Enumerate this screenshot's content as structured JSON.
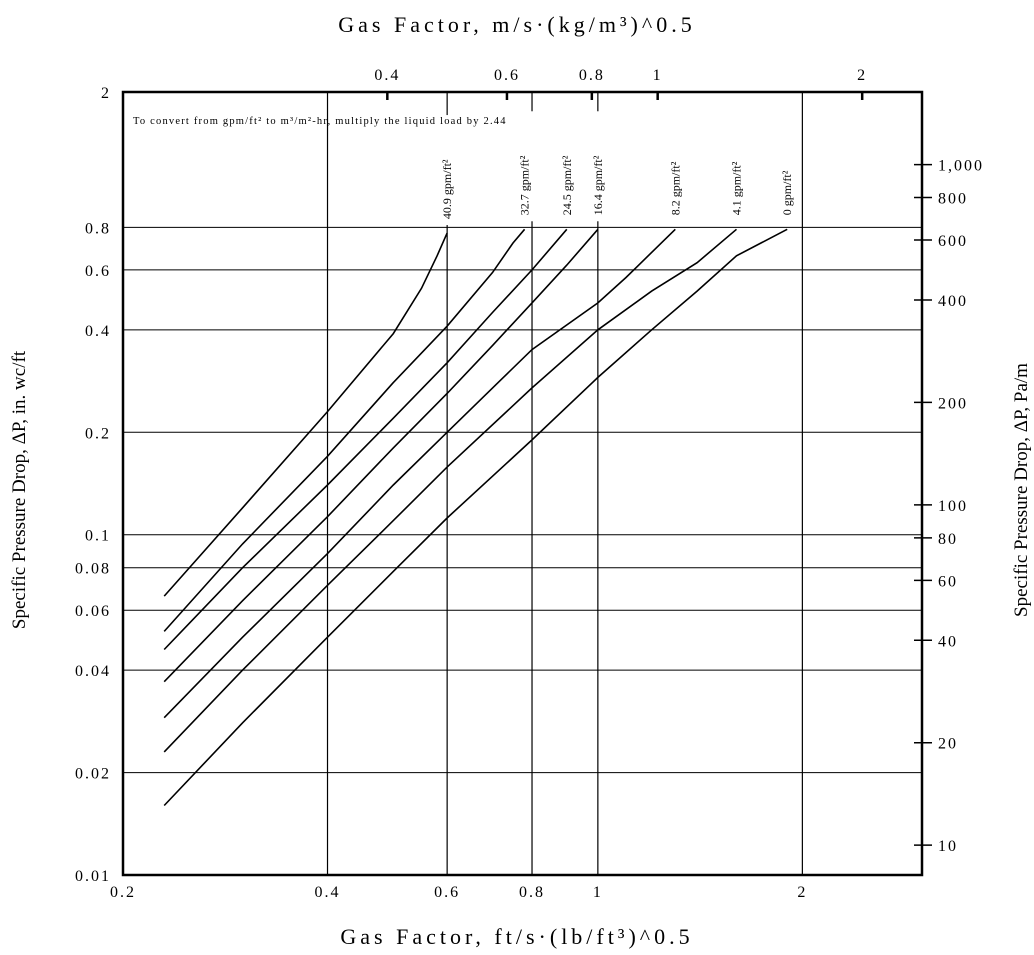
{
  "chart_data": {
    "type": "line",
    "title": "",
    "xlabel": "Gas Factor, ft/s·(lb/ft³)^0.5",
    "ylabel": "Specific Pressure Drop, ΔP, in. wc/ft",
    "secondary_x_label": "Gas Factor, m/s·(kg/m³)^0.5",
    "secondary_y_label": "Specific Pressure Drop, ΔP, Pa/m",
    "note": "To convert from gpm/ft² to m³/m²-hr, multiply the liquid load by 2.44",
    "x_scale": "log",
    "y_scale": "log",
    "xlim": [
      0.2,
      3.0
    ],
    "ylim": [
      0.01,
      2
    ],
    "grid": true,
    "bottom_ticks": [
      "0.2",
      "0.4",
      "0.6",
      "0.8",
      "1",
      "2"
    ],
    "left_ticks": [
      "0.01",
      "0.02",
      "0.04",
      "0.06",
      "0.08",
      "0.1",
      "0.2",
      "0.4",
      "0.6",
      "0.8",
      "2"
    ],
    "top_ticks": [
      "0.4",
      "0.6",
      "0.8",
      "1",
      "2"
    ],
    "right_ticks": [
      "10",
      "20",
      "40",
      "60",
      "80",
      "100",
      "200",
      "400",
      "600",
      "800",
      "1,000"
    ],
    "series": [
      {
        "name": "40.9 gpm/ft²",
        "x": [
          0.23,
          0.3,
          0.4,
          0.5,
          0.55,
          0.58,
          0.6
        ],
        "y": [
          0.066,
          0.12,
          0.23,
          0.39,
          0.53,
          0.66,
          0.77
        ]
      },
      {
        "name": "32.7 gpm/ft²",
        "x": [
          0.23,
          0.3,
          0.4,
          0.5,
          0.6,
          0.7,
          0.75,
          0.78
        ],
        "y": [
          0.052,
          0.094,
          0.17,
          0.28,
          0.41,
          0.59,
          0.72,
          0.79
        ]
      },
      {
        "name": "24.5 gpm/ft²",
        "x": [
          0.23,
          0.3,
          0.4,
          0.5,
          0.6,
          0.7,
          0.8,
          0.9
        ],
        "y": [
          0.046,
          0.08,
          0.14,
          0.22,
          0.32,
          0.45,
          0.6,
          0.79
        ]
      },
      {
        "name": "16.4 gpm/ft²",
        "x": [
          0.23,
          0.3,
          0.4,
          0.5,
          0.6,
          0.7,
          0.8,
          0.9,
          1.0
        ],
        "y": [
          0.037,
          0.064,
          0.113,
          0.18,
          0.26,
          0.36,
          0.48,
          0.62,
          0.79
        ]
      },
      {
        "name": "8.2 gpm/ft²",
        "x": [
          0.23,
          0.3,
          0.4,
          0.5,
          0.6,
          0.7,
          0.8,
          1.0,
          1.1,
          1.3
        ],
        "y": [
          0.029,
          0.05,
          0.088,
          0.14,
          0.2,
          0.27,
          0.35,
          0.48,
          0.57,
          0.79
        ]
      },
      {
        "name": "4.1 gpm/ft²",
        "x": [
          0.23,
          0.3,
          0.4,
          0.5,
          0.6,
          0.8,
          1.0,
          1.2,
          1.4,
          1.6
        ],
        "y": [
          0.023,
          0.04,
          0.071,
          0.11,
          0.158,
          0.27,
          0.4,
          0.52,
          0.63,
          0.79
        ]
      },
      {
        "name": "0 gpm/ft²",
        "x": [
          0.23,
          0.3,
          0.4,
          0.5,
          0.6,
          0.8,
          1.0,
          1.2,
          1.4,
          1.6,
          1.9
        ],
        "y": [
          0.016,
          0.028,
          0.05,
          0.078,
          0.112,
          0.19,
          0.29,
          0.4,
          0.52,
          0.66,
          0.79
        ]
      }
    ]
  }
}
